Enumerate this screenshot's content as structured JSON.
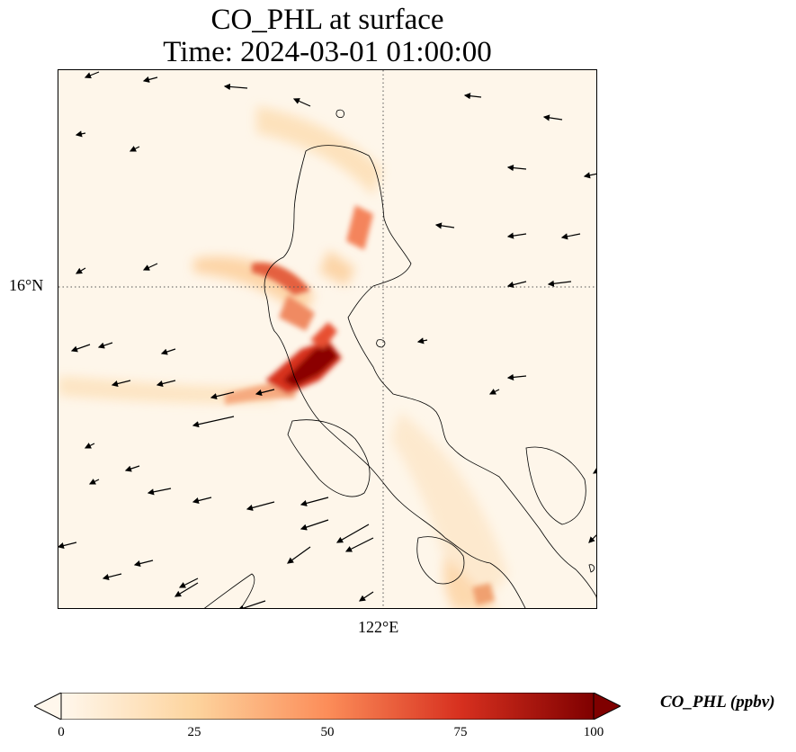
{
  "title_line1": "CO_PHL at surface",
  "title_line2": "Time: 2024-03-01 01:00:00",
  "map": {
    "variable": "CO_PHL",
    "level": "surface",
    "lat_gridline_label": "16°N",
    "lon_gridline_label": "122°E",
    "colormap": "OrRd",
    "features": [
      "coastlines",
      "wind-vectors",
      "gridlines"
    ]
  },
  "colorbar": {
    "label": "CO_PHL (ppbv)",
    "min": 0,
    "max": 100,
    "ticks": [
      "0",
      "25",
      "50",
      "75",
      "100"
    ],
    "extend": "both",
    "colors": [
      "#fff7ec",
      "#fdd49e",
      "#fc8d59",
      "#d7301f",
      "#7f0000"
    ]
  }
}
